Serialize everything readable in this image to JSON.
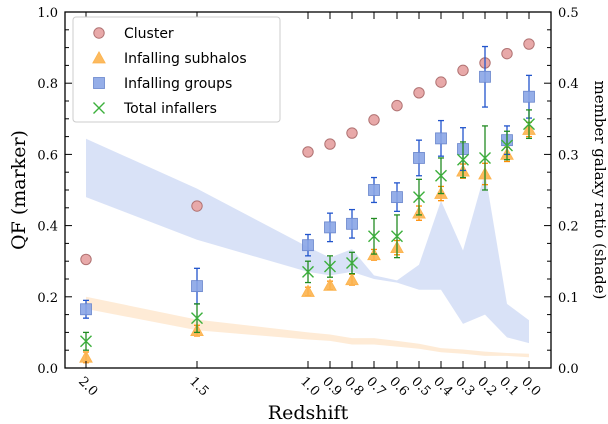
{
  "chart_data": {
    "type": "scatter",
    "xlabel": "Redshift",
    "ylabel": "QF (marker)",
    "ylabel_right": "member galaxy ratio (shade)",
    "x_ticks": [
      2.0,
      1.5,
      1.0,
      0.9,
      0.8,
      0.7,
      0.6,
      0.5,
      0.4,
      0.3,
      0.2,
      0.1,
      0.0
    ],
    "x_tick_labels": [
      "2.0",
      "1.5",
      "1.0",
      "0.9",
      "0.8",
      "0.7",
      "0.6",
      "0.5",
      "0.4",
      "0.3",
      "0.2",
      "0.1",
      "0.0"
    ],
    "ylim": [
      0.0,
      1.0
    ],
    "y_ticks": [
      0.0,
      0.2,
      0.4,
      0.6,
      0.8,
      1.0
    ],
    "y_tick_labels": [
      "0.0",
      "0.2",
      "0.4",
      "0.6",
      "0.8",
      "1.0"
    ],
    "ylim_right": [
      0.0,
      0.5
    ],
    "y_ticks_right": [
      0.0,
      0.1,
      0.2,
      0.3,
      0.4,
      0.5
    ],
    "y_tick_labels_right": [
      "0.0",
      "0.1",
      "0.2",
      "0.3",
      "0.4",
      "0.5"
    ],
    "legend_position": "top-left",
    "grid": false,
    "series": [
      {
        "name": "Cluster",
        "marker": "circle",
        "color": "#e8a9a9",
        "edge": "#b07272",
        "errcolor": "#b22222",
        "x": [
          2.0,
          1.5,
          1.0,
          0.9,
          0.8,
          0.7,
          0.6,
          0.5,
          0.4,
          0.3,
          0.2,
          0.1,
          0.0
        ],
        "y": [
          0.305,
          0.455,
          0.607,
          0.629,
          0.66,
          0.697,
          0.737,
          0.773,
          0.803,
          0.836,
          0.857,
          0.883,
          0.91
        ],
        "err": [
          0.01,
          0.01,
          0.01,
          0.01,
          0.01,
          0.01,
          0.01,
          0.01,
          0.01,
          0.01,
          0.01,
          0.01,
          0.01
        ]
      },
      {
        "name": "Infalling subhalos",
        "marker": "triangle",
        "color": "#fcb34e",
        "edge": "#fcb34e",
        "errcolor": "#ff8c00",
        "x": [
          2.0,
          1.5,
          1.0,
          0.9,
          0.8,
          0.7,
          0.6,
          0.5,
          0.4,
          0.3,
          0.2,
          0.1,
          0.0
        ],
        "y": [
          0.03,
          0.105,
          0.215,
          0.232,
          0.248,
          0.318,
          0.338,
          0.435,
          0.49,
          0.553,
          0.545,
          0.6,
          0.67
        ],
        "err": [
          0.015,
          0.015,
          0.012,
          0.012,
          0.015,
          0.015,
          0.02,
          0.02,
          0.02,
          0.02,
          0.03,
          0.02,
          0.02
        ]
      },
      {
        "name": "Infalling groups",
        "marker": "square",
        "color": "#8aa5e6",
        "edge": "#6a86cc",
        "errcolor": "#2255cc",
        "x": [
          2.0,
          1.5,
          1.0,
          0.9,
          0.8,
          0.7,
          0.6,
          0.5,
          0.4,
          0.3,
          0.2,
          0.1,
          0.0
        ],
        "y": [
          0.165,
          0.23,
          0.345,
          0.395,
          0.405,
          0.5,
          0.48,
          0.59,
          0.645,
          0.615,
          0.818,
          0.64,
          0.762
        ],
        "err": [
          0.025,
          0.05,
          0.03,
          0.04,
          0.04,
          0.035,
          0.04,
          0.05,
          0.05,
          0.06,
          0.085,
          0.04,
          0.06
        ]
      },
      {
        "name": "Total infallers",
        "marker": "x",
        "color": "#3cb03c",
        "edge": "#3cb03c",
        "errcolor": "#228b22",
        "x": [
          2.0,
          1.5,
          1.0,
          0.9,
          0.8,
          0.7,
          0.6,
          0.5,
          0.4,
          0.3,
          0.2,
          0.1,
          0.0
        ],
        "y": [
          0.075,
          0.14,
          0.27,
          0.285,
          0.295,
          0.37,
          0.37,
          0.48,
          0.54,
          0.585,
          0.59,
          0.625,
          0.685
        ],
        "err": [
          0.025,
          0.04,
          0.03,
          0.03,
          0.03,
          0.05,
          0.06,
          0.05,
          0.05,
          0.05,
          0.09,
          0.04,
          0.04
        ]
      }
    ],
    "shades": [
      {
        "axis": "right",
        "color": "#c5d2f2",
        "x": [
          2.0,
          1.5,
          1.0,
          0.9,
          0.8,
          0.7,
          0.6,
          0.5,
          0.4,
          0.3,
          0.2,
          0.1,
          0.0
        ],
        "low": [
          0.24,
          0.18,
          0.135,
          0.13,
          0.135,
          0.125,
          0.12,
          0.11,
          0.11,
          0.062,
          0.075,
          0.043,
          0.035
        ],
        "high": [
          0.322,
          0.252,
          0.17,
          0.155,
          0.167,
          0.13,
          0.123,
          0.145,
          0.235,
          0.165,
          0.275,
          0.09,
          0.067
        ]
      },
      {
        "axis": "right",
        "color": "#fde0c0",
        "x": [
          2.0,
          1.5,
          1.0,
          0.9,
          0.8,
          0.7,
          0.6,
          0.5,
          0.4,
          0.3,
          0.2,
          0.1,
          0.0
        ],
        "low": [
          0.083,
          0.053,
          0.04,
          0.038,
          0.033,
          0.033,
          0.03,
          0.027,
          0.022,
          0.02,
          0.017,
          0.017,
          0.015
        ],
        "high": [
          0.1,
          0.068,
          0.05,
          0.047,
          0.042,
          0.042,
          0.038,
          0.034,
          0.028,
          0.026,
          0.023,
          0.021,
          0.02
        ]
      }
    ]
  }
}
